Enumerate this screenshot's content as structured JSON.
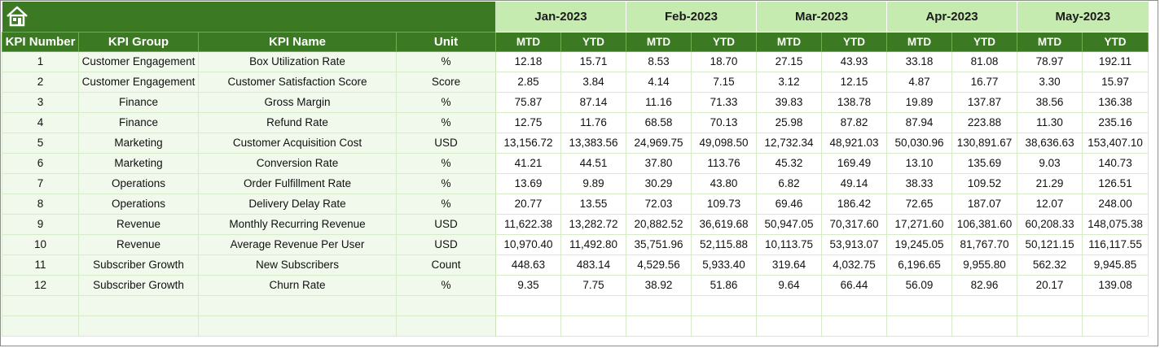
{
  "headers": {
    "kpi_number": "KPI Number",
    "kpi_group": "KPI Group",
    "kpi_name": "KPI Name",
    "unit": "Unit"
  },
  "months": [
    {
      "label": "Jan-2023",
      "mtd": "MTD",
      "ytd": "YTD"
    },
    {
      "label": "Feb-2023",
      "mtd": "MTD",
      "ytd": "YTD"
    },
    {
      "label": "Mar-2023",
      "mtd": "MTD",
      "ytd": "YTD"
    },
    {
      "label": "Apr-2023",
      "mtd": "MTD",
      "ytd": "YTD"
    },
    {
      "label": "May-2023",
      "mtd": "MTD",
      "ytd": "YTD"
    }
  ],
  "rows": [
    {
      "num": "1",
      "group": "Customer Engagement",
      "name": "Box Utilization Rate",
      "unit": "%",
      "values": [
        "12.18",
        "15.71",
        "8.53",
        "18.70",
        "27.15",
        "43.93",
        "33.18",
        "81.08",
        "78.97",
        "192.11"
      ]
    },
    {
      "num": "2",
      "group": "Customer Engagement",
      "name": "Customer Satisfaction Score",
      "unit": "Score",
      "values": [
        "2.85",
        "3.84",
        "4.14",
        "7.15",
        "3.12",
        "12.15",
        "4.87",
        "16.77",
        "3.30",
        "15.97"
      ]
    },
    {
      "num": "3",
      "group": "Finance",
      "name": "Gross Margin",
      "unit": "%",
      "values": [
        "75.87",
        "87.14",
        "11.16",
        "71.33",
        "39.83",
        "138.78",
        "19.89",
        "137.87",
        "38.56",
        "136.38"
      ]
    },
    {
      "num": "4",
      "group": "Finance",
      "name": "Refund Rate",
      "unit": "%",
      "values": [
        "12.75",
        "11.76",
        "68.58",
        "70.13",
        "25.98",
        "87.82",
        "87.94",
        "223.88",
        "11.30",
        "235.16"
      ]
    },
    {
      "num": "5",
      "group": "Marketing",
      "name": "Customer Acquisition Cost",
      "unit": "USD",
      "values": [
        "13,156.72",
        "13,383.56",
        "24,969.75",
        "49,098.50",
        "12,732.34",
        "48,921.03",
        "50,030.96",
        "130,891.67",
        "38,636.63",
        "153,407.10"
      ]
    },
    {
      "num": "6",
      "group": "Marketing",
      "name": "Conversion Rate",
      "unit": "%",
      "values": [
        "41.21",
        "44.51",
        "37.80",
        "113.76",
        "45.32",
        "169.49",
        "13.10",
        "135.69",
        "9.03",
        "140.73"
      ]
    },
    {
      "num": "7",
      "group": "Operations",
      "name": "Order Fulfillment Rate",
      "unit": "%",
      "values": [
        "13.69",
        "9.89",
        "30.29",
        "43.80",
        "6.82",
        "49.14",
        "38.33",
        "109.52",
        "21.29",
        "126.51"
      ]
    },
    {
      "num": "8",
      "group": "Operations",
      "name": "Delivery Delay Rate",
      "unit": "%",
      "values": [
        "20.77",
        "13.55",
        "72.03",
        "109.73",
        "69.46",
        "186.42",
        "72.65",
        "187.07",
        "12.07",
        "248.00"
      ]
    },
    {
      "num": "9",
      "group": "Revenue",
      "name": "Monthly Recurring Revenue",
      "unit": "USD",
      "values": [
        "11,622.38",
        "13,282.72",
        "20,882.52",
        "36,619.68",
        "50,947.05",
        "70,317.60",
        "17,271.60",
        "106,381.60",
        "60,208.33",
        "148,075.38"
      ]
    },
    {
      "num": "10",
      "group": "Revenue",
      "name": "Average Revenue Per User",
      "unit": "USD",
      "values": [
        "10,970.40",
        "11,492.80",
        "35,751.96",
        "52,115.88",
        "10,113.75",
        "53,913.07",
        "19,245.05",
        "81,767.70",
        "50,121.15",
        "116,117.55"
      ]
    },
    {
      "num": "11",
      "group": "Subscriber Growth",
      "name": "New Subscribers",
      "unit": "Count",
      "values": [
        "448.63",
        "483.14",
        "4,529.56",
        "5,933.40",
        "319.64",
        "4,032.75",
        "6,196.65",
        "9,955.80",
        "562.32",
        "9,945.85"
      ]
    },
    {
      "num": "12",
      "group": "Subscriber Growth",
      "name": "Churn Rate",
      "unit": "%",
      "values": [
        "9.35",
        "7.75",
        "38.92",
        "51.86",
        "9.64",
        "66.44",
        "56.09",
        "82.96",
        "20.17",
        "139.08"
      ]
    }
  ],
  "empty_rows": 2,
  "colors": {
    "header_green": "#3b7a22",
    "month_green": "#c6ebb0",
    "label_bg": "#f1f9ec"
  },
  "home_icon": "home-icon"
}
